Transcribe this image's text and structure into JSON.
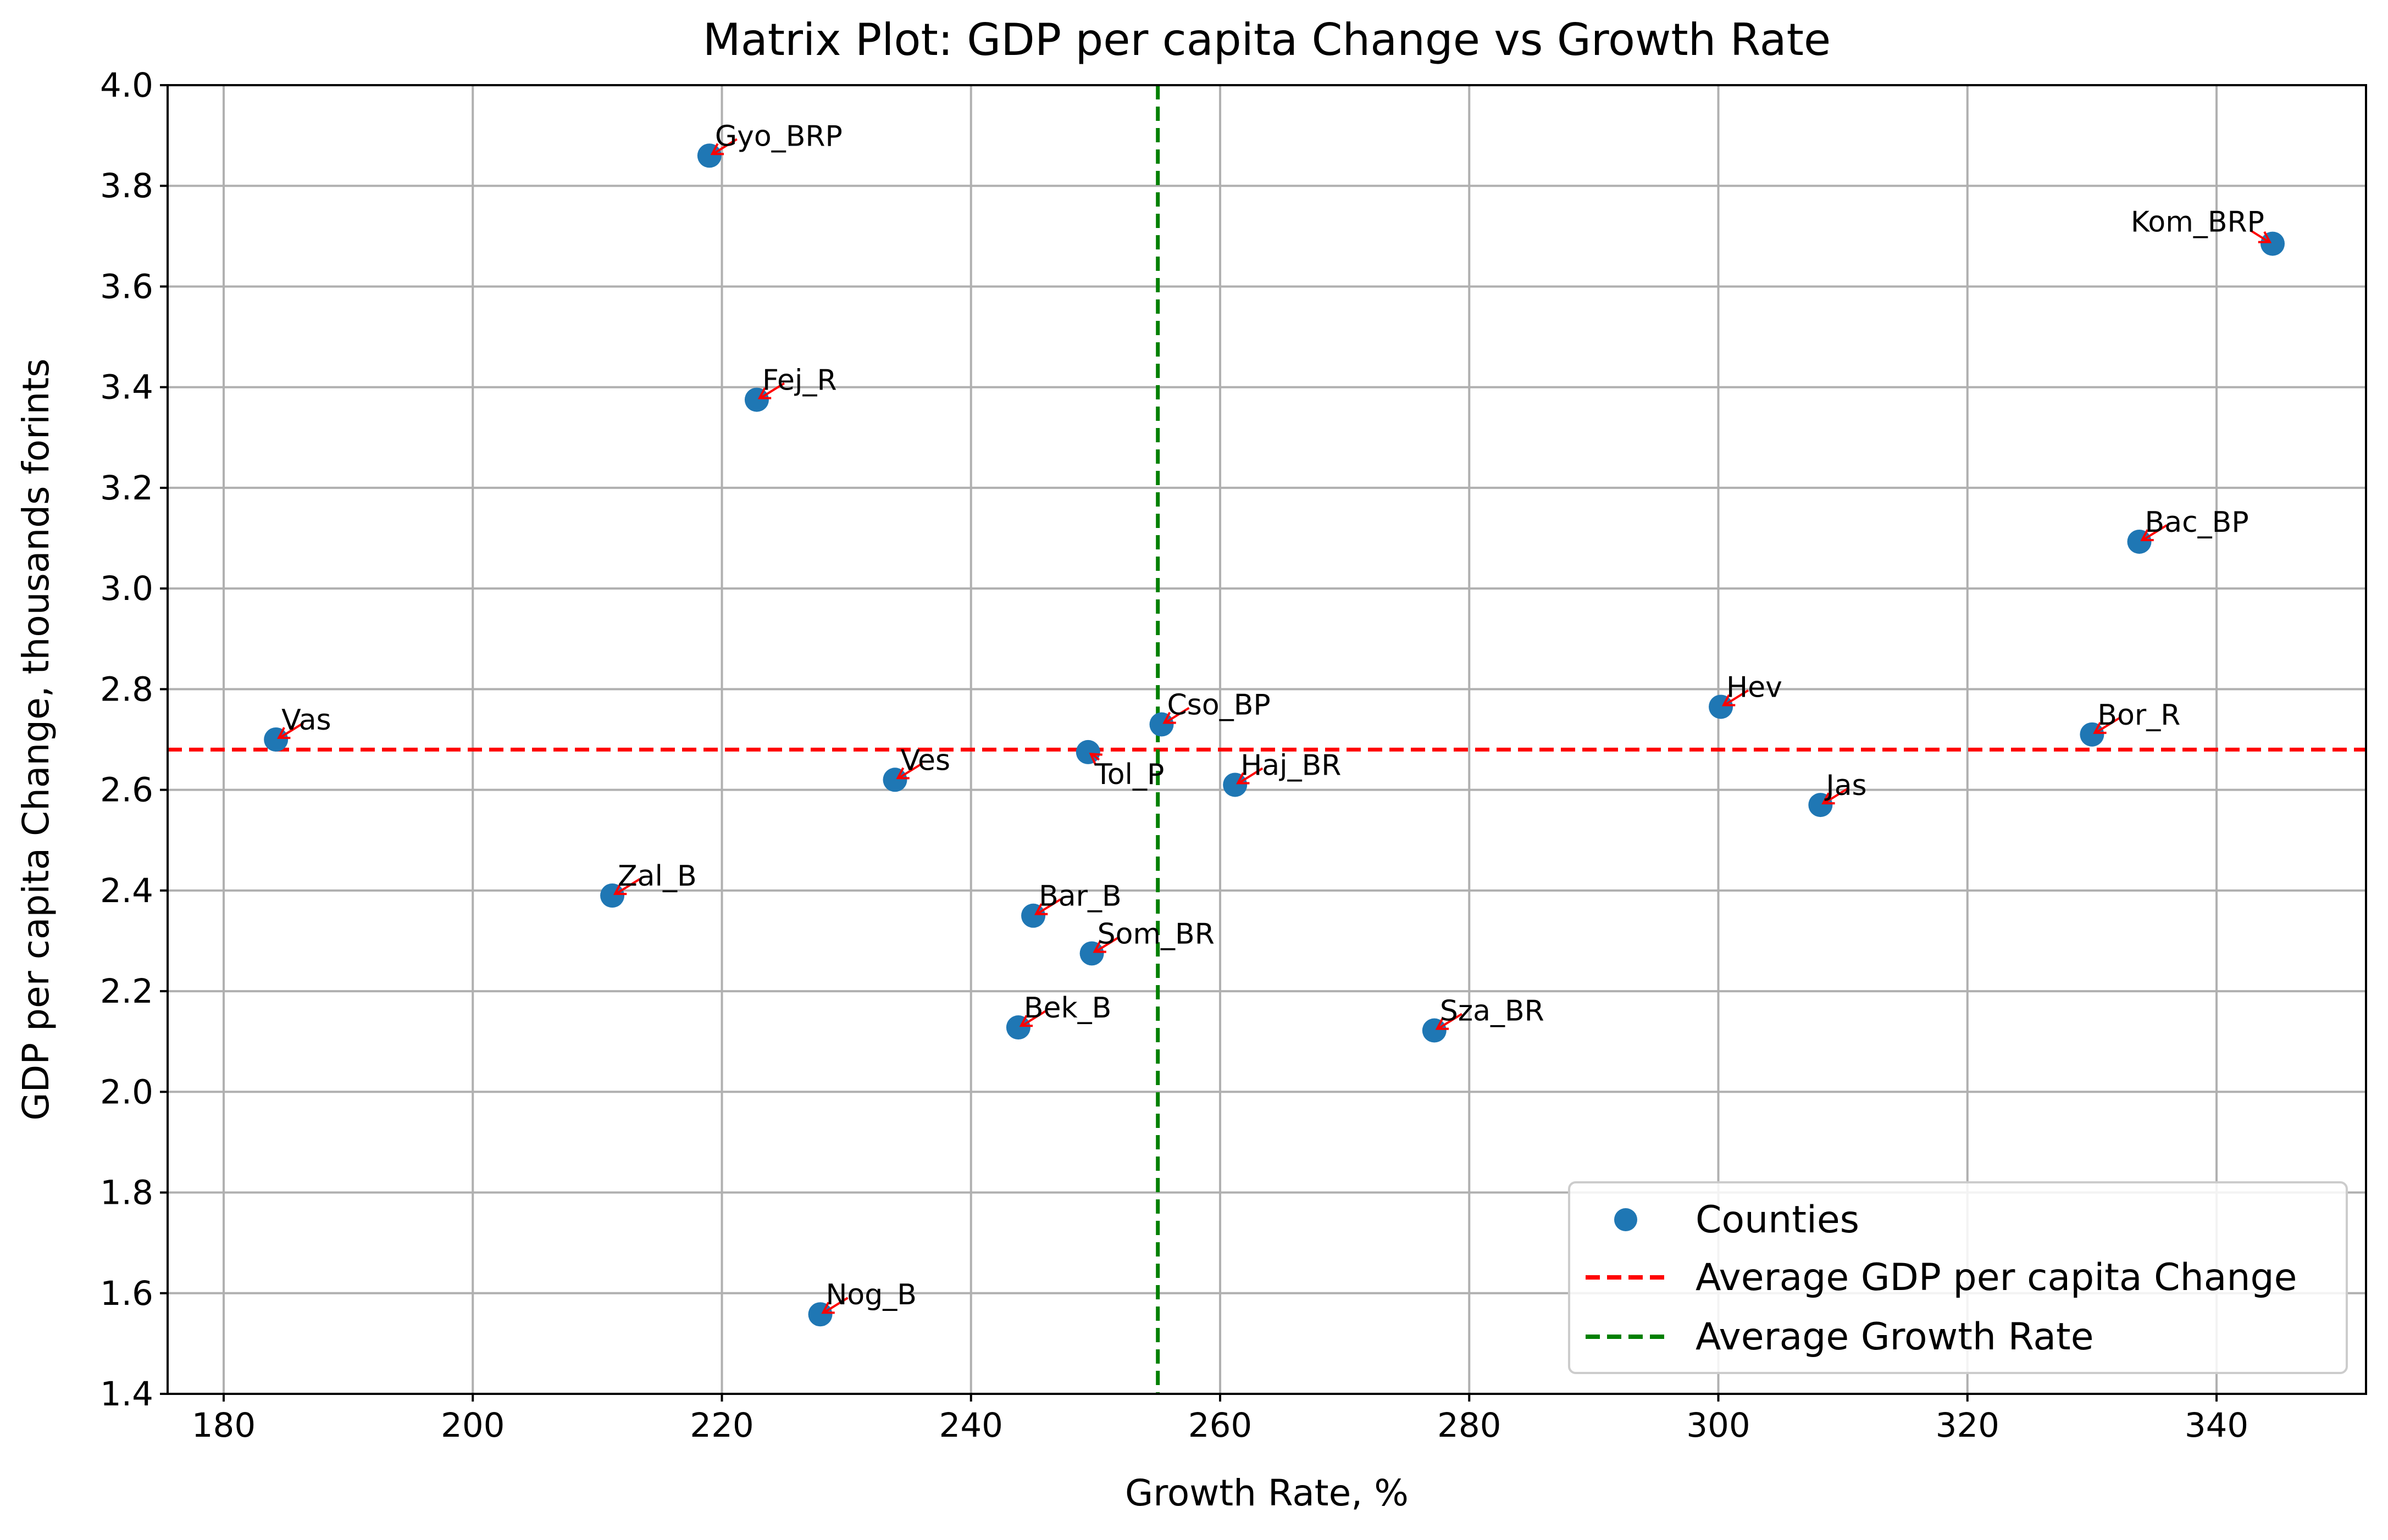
{
  "chart_data": {
    "type": "scatter",
    "title": "Matrix Plot: GDP per capita Change vs Growth Rate",
    "xlabel": "Growth Rate, %",
    "ylabel": "GDP per capita Change, thousands forints",
    "xlim": [
      175.5,
      352
    ],
    "ylim": [
      1.4,
      4.0
    ],
    "x_ticks": [
      180,
      200,
      220,
      240,
      260,
      280,
      300,
      320,
      340
    ],
    "y_ticks": [
      1.4,
      1.6,
      1.8,
      2.0,
      2.2,
      2.4,
      2.6,
      2.8,
      3.0,
      3.2,
      3.4,
      3.6,
      3.8,
      4.0
    ],
    "grid": true,
    "legend_position": "bottom-right",
    "series": [
      {
        "name": "Counties",
        "color": "#1f77b4",
        "points": [
          {
            "label": "Gyo_BRP",
            "x": 219.0,
            "y": 3.86,
            "anchor": "start"
          },
          {
            "label": "Kom_BRP",
            "x": 344.5,
            "y": 3.685,
            "anchor": "end"
          },
          {
            "label": "Fej_R",
            "x": 222.8,
            "y": 3.375,
            "anchor": "start"
          },
          {
            "label": "Bac_BP",
            "x": 333.8,
            "y": 3.093,
            "anchor": "start"
          },
          {
            "label": "Hev",
            "x": 300.2,
            "y": 2.765,
            "anchor": "start"
          },
          {
            "label": "Cso_BP",
            "x": 255.3,
            "y": 2.73,
            "anchor": "start"
          },
          {
            "label": "Bor_R",
            "x": 330.0,
            "y": 2.71,
            "anchor": "start"
          },
          {
            "label": "Vas",
            "x": 184.2,
            "y": 2.7,
            "anchor": "start"
          },
          {
            "label": "Tol_P",
            "x": 249.4,
            "y": 2.675,
            "anchor": "below"
          },
          {
            "label": "Ves",
            "x": 233.9,
            "y": 2.62,
            "anchor": "start"
          },
          {
            "label": "Haj_BR",
            "x": 261.2,
            "y": 2.61,
            "anchor": "start"
          },
          {
            "label": "Jas",
            "x": 308.2,
            "y": 2.57,
            "anchor": "start"
          },
          {
            "label": "Zal_B",
            "x": 211.2,
            "y": 2.39,
            "anchor": "start"
          },
          {
            "label": "Bar_B",
            "x": 245.0,
            "y": 2.35,
            "anchor": "start"
          },
          {
            "label": "Som_BR",
            "x": 249.7,
            "y": 2.275,
            "anchor": "start"
          },
          {
            "label": "Bek_B",
            "x": 243.8,
            "y": 2.128,
            "anchor": "start"
          },
          {
            "label": "Sza_BR",
            "x": 277.2,
            "y": 2.122,
            "anchor": "start"
          },
          {
            "label": "Nog_B",
            "x": 227.9,
            "y": 1.558,
            "anchor": "start"
          }
        ]
      }
    ],
    "reference_lines": [
      {
        "name": "Average GDP per capita Change",
        "orientation": "horizontal",
        "value": 2.68,
        "color": "#ff0000",
        "style": "dashed"
      },
      {
        "name": "Average Growth Rate",
        "orientation": "vertical",
        "value": 255.0,
        "color": "#008000",
        "style": "dashed"
      }
    ],
    "annotation_arrow_color": "#ff0000"
  }
}
